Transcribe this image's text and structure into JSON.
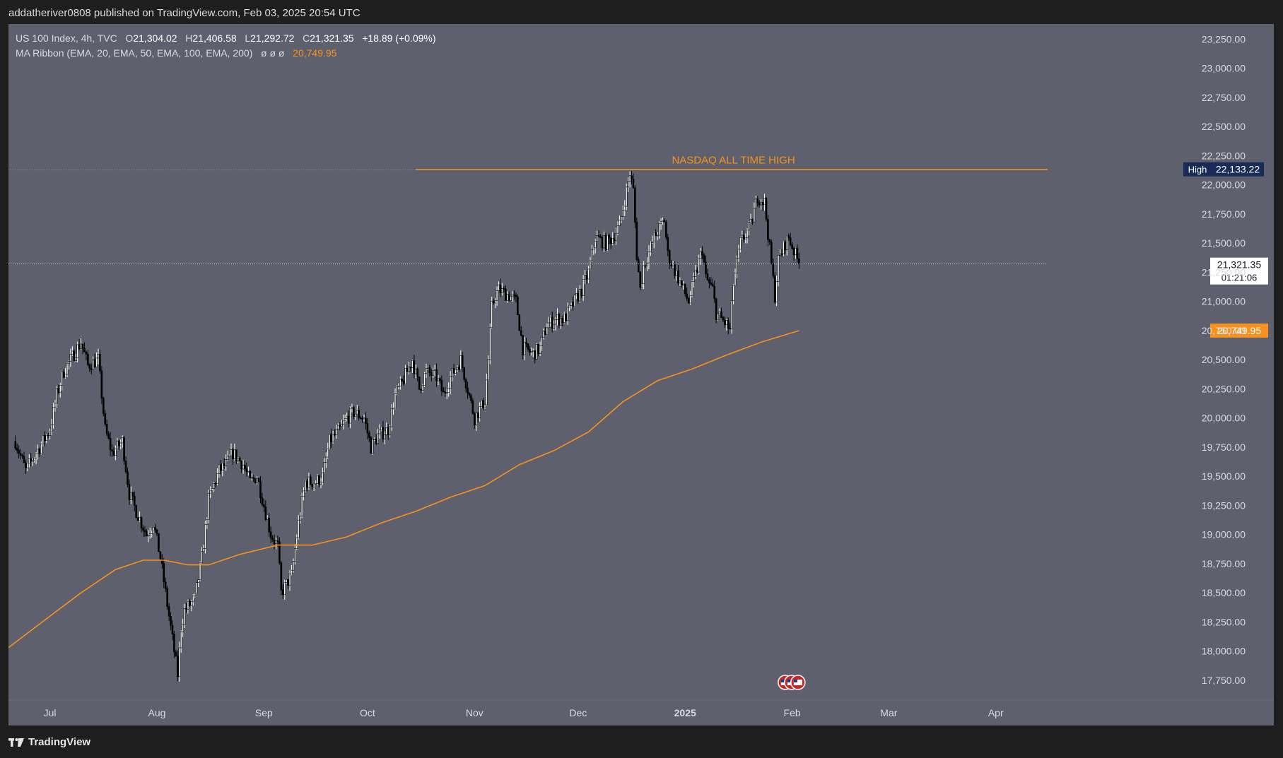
{
  "publisher_line": "addatheriver0808 published on TradingView.com, Feb 03, 2025 20:54 UTC",
  "legend": {
    "symbol": "US 100 Index, 4h, TVC",
    "open_label": "O",
    "open": "21,304.02",
    "high_label": "H",
    "high": "21,406.58",
    "low_label": "L",
    "low": "21,292.72",
    "close_label": "C",
    "close": "21,321.35",
    "change": "+18.89 (+0.09%)",
    "ma_label": "MA Ribbon (EMA, 20, EMA, 50, EMA, 100, EMA, 200)",
    "ma_empty": "ø  ø  ø",
    "ma_value": "20,749.95"
  },
  "footer": {
    "brand": "TradingView",
    "logo_icon": "tradingview-logo-icon"
  },
  "colors": {
    "background": "#5e616d",
    "frame": "#1e1e1e",
    "up_candle": "#ffffff",
    "down_candle": "#000000",
    "ema": "#f7911e",
    "ath_line": "#f7911e",
    "high_badge": "#1a2b57"
  },
  "chart_data": {
    "type": "candlestick",
    "symbol": "US 100 Index",
    "interval": "4h",
    "ylim": [
      17580,
      23380
    ],
    "y_ticks": [
      17750,
      18000,
      18250,
      18500,
      18750,
      19000,
      19250,
      19500,
      19750,
      20000,
      20250,
      20500,
      20750,
      21000,
      21250,
      21500,
      21750,
      22000,
      22250,
      22500,
      22750,
      23000,
      23250
    ],
    "y_tick_labels": [
      "17,750.00",
      "18,000.00",
      "18,250.00",
      "18,500.00",
      "18,750.00",
      "19,000.00",
      "19,250.00",
      "19,500.00",
      "19,750.00",
      "20,000.00",
      "20,250.00",
      "20,500.00",
      "20,750.00",
      "21,000.00",
      "21,250.00",
      "21,500.00",
      "21,750.00",
      "22,000.00",
      "22,250.00",
      "22,500.00",
      "22,750.00",
      "23,000.00",
      "23,250.00"
    ],
    "xlim": [
      "2024-06-19",
      "2025-04-16"
    ],
    "x_ticks": [
      {
        "label": "Jul",
        "date": "2024-07-01",
        "bold": false
      },
      {
        "label": "Aug",
        "date": "2024-08-01",
        "bold": false
      },
      {
        "label": "Sep",
        "date": "2024-09-01",
        "bold": false
      },
      {
        "label": "Oct",
        "date": "2024-10-01",
        "bold": false
      },
      {
        "label": "Nov",
        "date": "2024-11-01",
        "bold": false
      },
      {
        "label": "Dec",
        "date": "2024-12-01",
        "bold": false
      },
      {
        "label": "2025",
        "date": "2025-01-01",
        "bold": true
      },
      {
        "label": "Feb",
        "date": "2025-02-01",
        "bold": false
      },
      {
        "label": "Mar",
        "date": "2025-03-01",
        "bold": false
      },
      {
        "label": "Apr",
        "date": "2025-04-01",
        "bold": false
      }
    ],
    "price_path": [
      [
        "2024-06-21",
        19800
      ],
      [
        "2024-06-24",
        19550
      ],
      [
        "2024-06-27",
        19700
      ],
      [
        "2024-07-01",
        19900
      ],
      [
        "2024-07-03",
        20200
      ],
      [
        "2024-07-05",
        20400
      ],
      [
        "2024-07-08",
        20550
      ],
      [
        "2024-07-10",
        20650
      ],
      [
        "2024-07-12",
        20450
      ],
      [
        "2024-07-15",
        20500
      ],
      [
        "2024-07-17",
        19900
      ],
      [
        "2024-07-19",
        19700
      ],
      [
        "2024-07-22",
        19800
      ],
      [
        "2024-07-24",
        19350
      ],
      [
        "2024-07-26",
        19200
      ],
      [
        "2024-07-29",
        19000
      ],
      [
        "2024-07-31",
        19100
      ],
      [
        "2024-08-02",
        18800
      ],
      [
        "2024-08-05",
        18200
      ],
      [
        "2024-08-06",
        18000
      ],
      [
        "2024-08-07",
        17800
      ],
      [
        "2024-08-08",
        18200
      ],
      [
        "2024-08-09",
        18350
      ],
      [
        "2024-08-12",
        18450
      ],
      [
        "2024-08-14",
        18800
      ],
      [
        "2024-08-16",
        19300
      ],
      [
        "2024-08-19",
        19550
      ],
      [
        "2024-08-21",
        19600
      ],
      [
        "2024-08-23",
        19700
      ],
      [
        "2024-08-26",
        19600
      ],
      [
        "2024-08-28",
        19450
      ],
      [
        "2024-08-30",
        19500
      ],
      [
        "2024-09-03",
        19000
      ],
      [
        "2024-09-05",
        18900
      ],
      [
        "2024-09-06",
        18500
      ],
      [
        "2024-09-09",
        18650
      ],
      [
        "2024-09-11",
        19100
      ],
      [
        "2024-09-13",
        19450
      ],
      [
        "2024-09-16",
        19450
      ],
      [
        "2024-09-18",
        19500
      ],
      [
        "2024-09-20",
        19800
      ],
      [
        "2024-09-23",
        19900
      ],
      [
        "2024-09-25",
        20000
      ],
      [
        "2024-09-27",
        20050
      ],
      [
        "2024-09-30",
        20000
      ],
      [
        "2024-10-02",
        19750
      ],
      [
        "2024-10-04",
        19850
      ],
      [
        "2024-10-07",
        19900
      ],
      [
        "2024-10-09",
        20200
      ],
      [
        "2024-10-11",
        20300
      ],
      [
        "2024-10-14",
        20500
      ],
      [
        "2024-10-16",
        20250
      ],
      [
        "2024-10-18",
        20400
      ],
      [
        "2024-10-21",
        20350
      ],
      [
        "2024-10-23",
        20200
      ],
      [
        "2024-10-25",
        20350
      ],
      [
        "2024-10-28",
        20500
      ],
      [
        "2024-10-30",
        20250
      ],
      [
        "2024-11-01",
        20000
      ],
      [
        "2024-11-04",
        20150
      ],
      [
        "2024-11-05",
        20500
      ],
      [
        "2024-11-06",
        20950
      ],
      [
        "2024-11-07",
        21050
      ],
      [
        "2024-11-08",
        21100
      ],
      [
        "2024-11-11",
        21050
      ],
      [
        "2024-11-13",
        21000
      ],
      [
        "2024-11-15",
        20600
      ],
      [
        "2024-11-18",
        20550
      ],
      [
        "2024-11-20",
        20600
      ],
      [
        "2024-11-22",
        20800
      ],
      [
        "2024-11-25",
        20850
      ],
      [
        "2024-11-27",
        20850
      ],
      [
        "2024-11-29",
        20950
      ],
      [
        "2024-12-02",
        21100
      ],
      [
        "2024-12-04",
        21250
      ],
      [
        "2024-12-06",
        21550
      ],
      [
        "2024-12-09",
        21500
      ],
      [
        "2024-12-11",
        21550
      ],
      [
        "2024-12-13",
        21650
      ],
      [
        "2024-12-16",
        22100
      ],
      [
        "2024-12-17",
        21950
      ],
      [
        "2024-12-18",
        21400
      ],
      [
        "2024-12-19",
        21100
      ],
      [
        "2024-12-20",
        21300
      ],
      [
        "2024-12-23",
        21550
      ],
      [
        "2024-12-26",
        21700
      ],
      [
        "2024-12-27",
        21400
      ],
      [
        "2024-12-30",
        21200
      ],
      [
        "2025-01-02",
        21000
      ],
      [
        "2025-01-06",
        21450
      ],
      [
        "2025-01-07",
        21200
      ],
      [
        "2025-01-09",
        21100
      ],
      [
        "2025-01-10",
        20900
      ],
      [
        "2025-01-13",
        20800
      ],
      [
        "2025-01-14",
        20750
      ],
      [
        "2025-01-15",
        21150
      ],
      [
        "2025-01-17",
        21500
      ],
      [
        "2025-01-20",
        21650
      ],
      [
        "2025-01-22",
        21900
      ],
      [
        "2025-01-24",
        21850
      ],
      [
        "2025-01-27",
        21050
      ],
      [
        "2025-01-28",
        21350
      ],
      [
        "2025-01-30",
        21500
      ],
      [
        "2025-01-31",
        21550
      ],
      [
        "2025-02-03",
        21321
      ]
    ],
    "last_price": 21321.35,
    "last_price_label": "21,321.35",
    "countdown": "01:21:06",
    "ema_label": "20,749.95",
    "ema_points": [
      [
        "2024-06-19",
        18030
      ],
      [
        "2024-07-01",
        18300
      ],
      [
        "2024-07-10",
        18500
      ],
      [
        "2024-07-20",
        18700
      ],
      [
        "2024-07-28",
        18780
      ],
      [
        "2024-08-03",
        18780
      ],
      [
        "2024-08-10",
        18740
      ],
      [
        "2024-08-16",
        18740
      ],
      [
        "2024-08-25",
        18830
      ],
      [
        "2024-09-05",
        18910
      ],
      [
        "2024-09-15",
        18910
      ],
      [
        "2024-09-25",
        18980
      ],
      [
        "2024-10-05",
        19100
      ],
      [
        "2024-10-15",
        19200
      ],
      [
        "2024-10-25",
        19320
      ],
      [
        "2024-11-04",
        19420
      ],
      [
        "2024-11-14",
        19600
      ],
      [
        "2024-11-24",
        19720
      ],
      [
        "2024-12-04",
        19880
      ],
      [
        "2024-12-14",
        20140
      ],
      [
        "2024-12-24",
        20320
      ],
      [
        "2025-01-03",
        20420
      ],
      [
        "2025-01-13",
        20540
      ],
      [
        "2025-01-23",
        20650
      ],
      [
        "2025-02-03",
        20750
      ]
    ],
    "ath": {
      "value": 22133.22,
      "label": "22,133.22",
      "tag": "High",
      "annotation": "NASDAQ ALL TIME HIGH",
      "start": "2024-10-15"
    },
    "event_icons": [
      "us-flag-icon",
      "us-flag-icon",
      "us-flag-icon"
    ]
  }
}
